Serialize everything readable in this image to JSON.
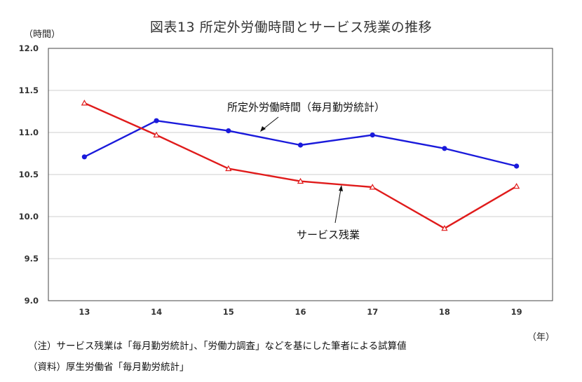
{
  "chart_data": {
    "type": "line",
    "title": "図表13 所定外労働時間とサービス残業の推移",
    "y_unit": "（時間）",
    "x_unit": "（年）",
    "categories": [
      "13",
      "14",
      "15",
      "16",
      "17",
      "18",
      "19"
    ],
    "ylim": [
      9.0,
      12.0
    ],
    "yticks": [
      "12.0",
      "11.5",
      "11.0",
      "10.5",
      "10.0",
      "9.5",
      "9.0"
    ],
    "grid": true,
    "series": [
      {
        "name": "所定外労働時間（毎月勤労統計）",
        "color": "#1a1adb",
        "marker": "circle",
        "values": [
          10.71,
          11.14,
          11.02,
          10.85,
          10.97,
          10.81,
          10.6
        ]
      },
      {
        "name": "サービス残業",
        "color": "#e01b1b",
        "marker": "triangle",
        "values": [
          11.35,
          10.97,
          10.57,
          10.42,
          10.35,
          9.86,
          10.36
        ]
      }
    ],
    "notes": [
      "（注）サービス残業は「毎月勤労統計」、「労働力調査」などを基にした筆者による試算値",
      "（資料）厚生労働省「毎月勤労統計」"
    ]
  }
}
